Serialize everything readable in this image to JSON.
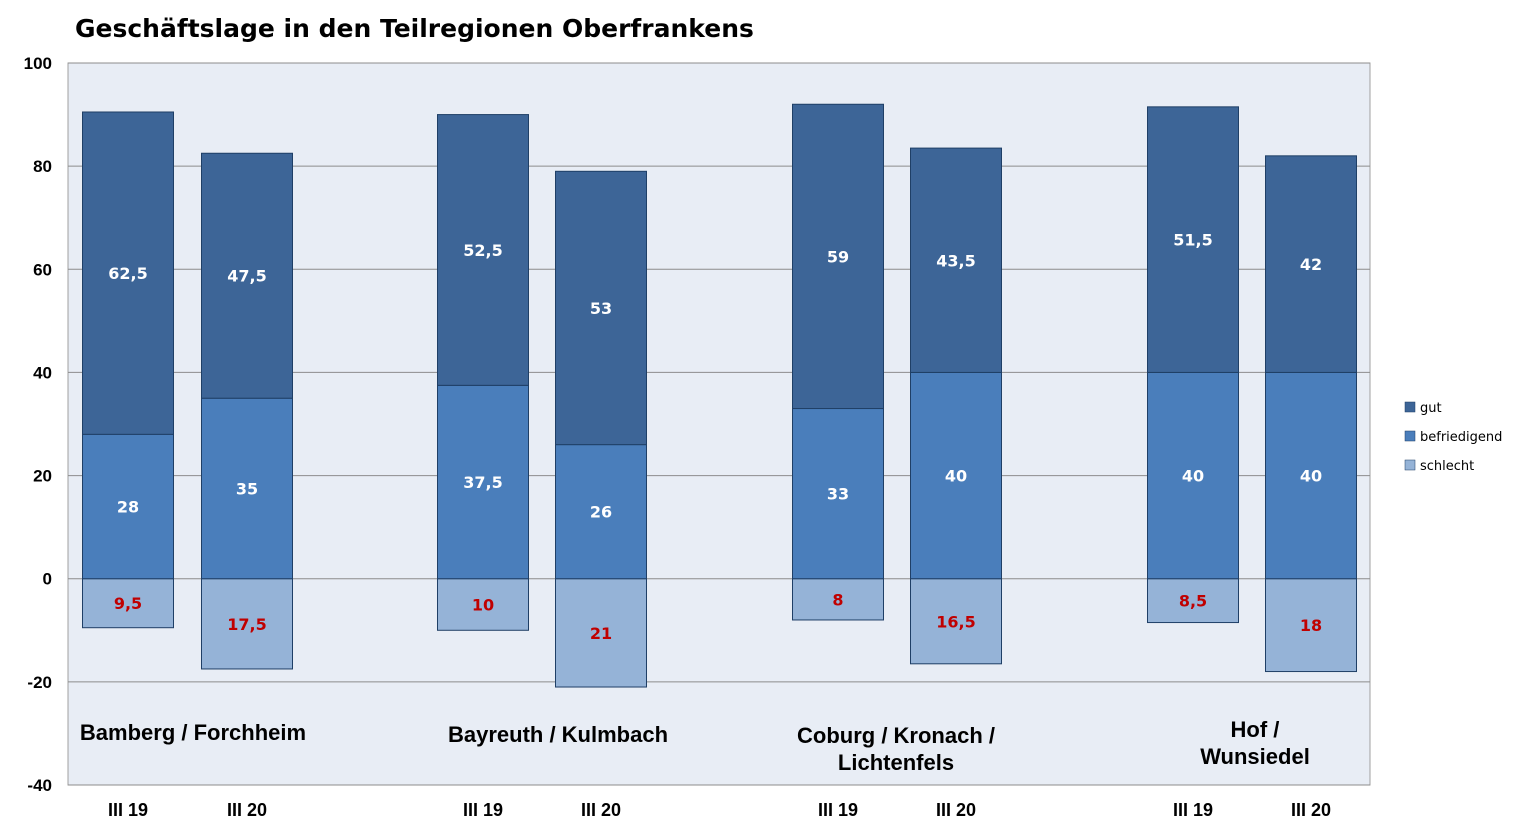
{
  "chart_data": {
    "type": "bar",
    "stacked": true,
    "title": "Geschäftslage in den Teilregionen Oberfrankens",
    "ylim": [
      -40,
      100
    ],
    "yticks": [
      100,
      80,
      60,
      40,
      20,
      0,
      -20,
      -40
    ],
    "grid": true,
    "legend_position": "right",
    "plot_background": "#E8EDF5",
    "groups": [
      {
        "lines": [
          "Bamberg / Forchheim"
        ]
      },
      {
        "lines": [
          "Bayreuth / Kulmbach"
        ]
      },
      {
        "lines": [
          "Coburg / Kronach /",
          "Lichtenfels"
        ]
      },
      {
        "lines": [
          "Hof /",
          "Wunsiedel"
        ]
      }
    ],
    "categories": [
      "III 19",
      "III 20",
      "III 19",
      "III 20",
      "III 19",
      "III 20",
      "III 19",
      "III 20"
    ],
    "series": [
      {
        "name": "gut",
        "color": "#3D6597",
        "values": [
          62.5,
          47.5,
          52.5,
          53,
          59,
          43.5,
          51.5,
          42
        ],
        "labels": [
          "62,5",
          "47,5",
          "52,5",
          "53",
          "59",
          "43,5",
          "51,5",
          "42"
        ],
        "label_color": "#FFFFFF"
      },
      {
        "name": "befriedigend",
        "color": "#4A7EBB",
        "values": [
          28,
          35,
          37.5,
          26,
          33,
          40,
          40,
          40
        ],
        "labels": [
          "28",
          "35",
          "37,5",
          "26",
          "33",
          "40",
          "40",
          "40"
        ],
        "label_color": "#FFFFFF"
      },
      {
        "name": "schlecht",
        "color": "#95B3D7",
        "values": [
          -9.5,
          -17.5,
          -10,
          -21,
          -8,
          -16.5,
          -8.5,
          -18
        ],
        "labels": [
          "9,5",
          "17,5",
          "10",
          "21",
          "8",
          "16,5",
          "8,5",
          "18"
        ],
        "label_color": "#C00000"
      }
    ]
  }
}
